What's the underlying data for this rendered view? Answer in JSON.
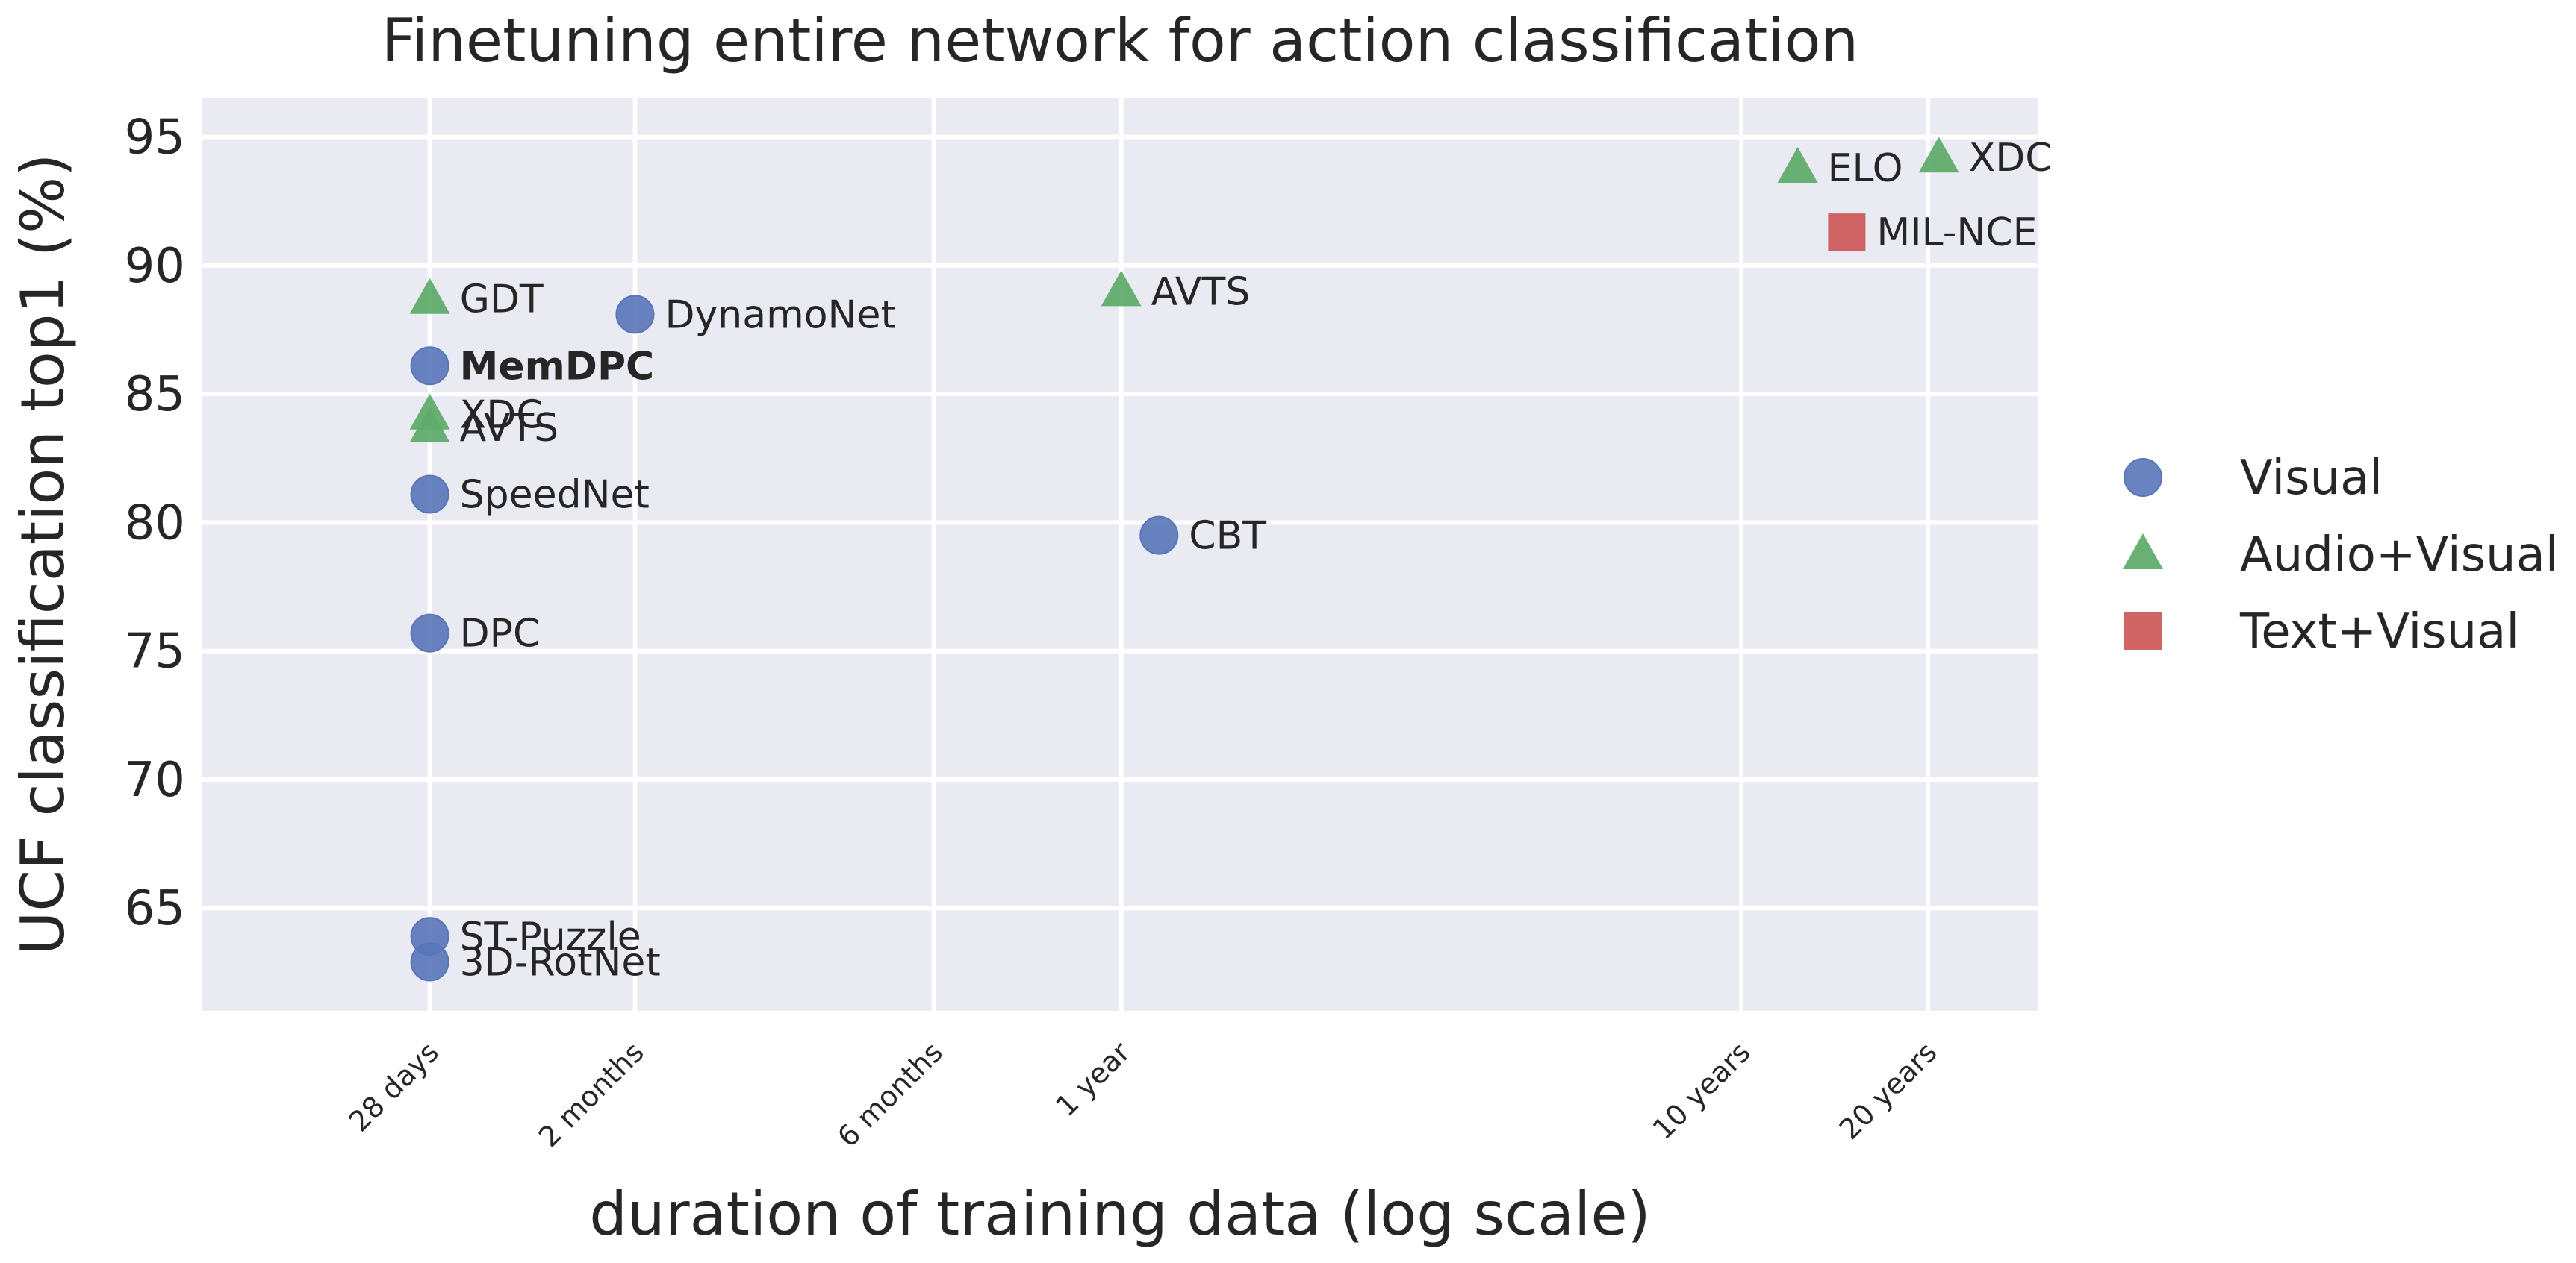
{
  "chart_data": {
    "type": "scatter",
    "title": "Finetuning entire network for action classification",
    "xlabel": "duration of training data (log scale)",
    "ylabel": "UCF classification top1 (%)",
    "x_scale": "log",
    "x_unit": "days",
    "xlim_days": [
      12,
      11000
    ],
    "ylim": [
      61,
      96.5
    ],
    "yticks": [
      65,
      70,
      75,
      80,
      85,
      90,
      95
    ],
    "xticks": [
      {
        "days": 28,
        "label": "28 days"
      },
      {
        "days": 60,
        "label": "2 months"
      },
      {
        "days": 182,
        "label": "6 months"
      },
      {
        "days": 365,
        "label": "1 year"
      },
      {
        "days": 3650,
        "label": "10 years"
      },
      {
        "days": 7300,
        "label": "20 years"
      }
    ],
    "grid": true,
    "legend_position": "right",
    "series": [
      {
        "name": "Visual",
        "marker": "circle",
        "color": "#5975b9",
        "points": [
          {
            "label": "DynamoNet",
            "days": 60,
            "y": 88.1
          },
          {
            "label": "MemDPC",
            "days": 28,
            "y": 86.1,
            "bold": true
          },
          {
            "label": "SpeedNet",
            "days": 28,
            "y": 81.1
          },
          {
            "label": "DPC",
            "days": 28,
            "y": 75.7
          },
          {
            "label": "CBT",
            "days": 420,
            "y": 79.5
          },
          {
            "label": "ST-Puzzle",
            "days": 28,
            "y": 63.9
          },
          {
            "label": "3D-RotNet",
            "days": 28,
            "y": 62.9
          }
        ]
      },
      {
        "name": "Audio+Visual",
        "marker": "triangle",
        "color": "#60ac6c",
        "points": [
          {
            "label": "GDT",
            "days": 28,
            "y": 88.7
          },
          {
            "label": "XDC",
            "days": 28,
            "y": 84.2
          },
          {
            "label": "AVTS",
            "days": 28,
            "y": 83.7
          },
          {
            "label": "AVTS",
            "days": 365,
            "y": 89.0
          },
          {
            "label": "ELO",
            "days": 4500,
            "y": 93.8
          },
          {
            "label": "XDC",
            "days": 7600,
            "y": 94.2
          }
        ]
      },
      {
        "name": "Text+Visual",
        "marker": "square",
        "color": "#cd5c5c",
        "points": [
          {
            "label": "MIL-NCE",
            "days": 5400,
            "y": 91.3
          }
        ]
      }
    ]
  }
}
